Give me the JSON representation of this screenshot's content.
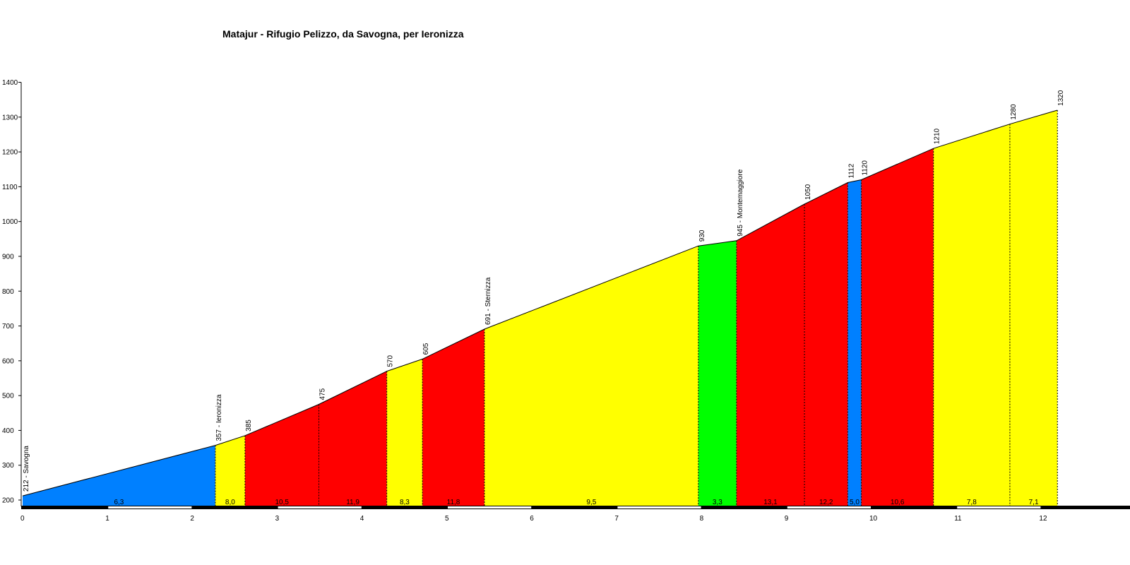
{
  "chart_data": {
    "type": "area",
    "title": "Matajur - Rifugio Pelizzo, da Savogna, per Ieronizza",
    "xlabel": "",
    "ylabel": "",
    "xlim": [
      0,
      12.8
    ],
    "ylim": [
      175,
      1400
    ],
    "x_ticks": [
      0,
      1,
      2,
      3,
      4,
      5,
      6,
      7,
      8,
      9,
      10,
      11,
      12
    ],
    "y_ticks": [
      200,
      300,
      400,
      500,
      600,
      700,
      800,
      900,
      1000,
      1100,
      1200,
      1300,
      1400
    ],
    "grid": false,
    "points": [
      {
        "x": 0,
        "y": 212,
        "label": "212 - Savogna"
      },
      {
        "x": 2.27,
        "y": 357,
        "label": "357 - Ieronizza"
      },
      {
        "x": 2.62,
        "y": 385,
        "label": "385"
      },
      {
        "x": 3.49,
        "y": 475,
        "label": "475"
      },
      {
        "x": 4.29,
        "y": 570,
        "label": "570"
      },
      {
        "x": 4.71,
        "y": 605,
        "label": "605"
      },
      {
        "x": 5.44,
        "y": 691,
        "label": "691 - Sternizza"
      },
      {
        "x": 7.96,
        "y": 930,
        "label": "930"
      },
      {
        "x": 8.41,
        "y": 945,
        "label": "945 - Montemaggiore"
      },
      {
        "x": 9.21,
        "y": 1050,
        "label": "1050"
      },
      {
        "x": 9.72,
        "y": 1112,
        "label": "1112"
      },
      {
        "x": 9.88,
        "y": 1120,
        "label": "1120"
      },
      {
        "x": 10.73,
        "y": 1210,
        "label": "1210"
      },
      {
        "x": 11.63,
        "y": 1280,
        "label": "1280"
      },
      {
        "x": 12.19,
        "y": 1320,
        "label": "1320"
      }
    ],
    "segments": [
      {
        "from": 0,
        "to": 1,
        "gradient": "6,3",
        "color": "#0080FF"
      },
      {
        "from": 1,
        "to": 2,
        "gradient": "8,0",
        "color": "#FFFF00"
      },
      {
        "from": 2,
        "to": 3,
        "gradient": "10,5",
        "color": "#FF0000"
      },
      {
        "from": 3,
        "to": 4,
        "gradient": "11,9",
        "color": "#FF0000"
      },
      {
        "from": 4,
        "to": 5,
        "gradient": "8,3",
        "color": "#FFFF00"
      },
      {
        "from": 5,
        "to": 6,
        "gradient": "11,8",
        "color": "#FF0000"
      },
      {
        "from": 6,
        "to": 7,
        "gradient": "9,5",
        "color": "#FFFF00"
      },
      {
        "from": 7,
        "to": 8,
        "gradient": "3,3",
        "color": "#00FF00"
      },
      {
        "from": 8,
        "to": 9,
        "gradient": "13,1",
        "color": "#FF0000"
      },
      {
        "from": 9,
        "to": 10,
        "gradient": "12,2",
        "color": "#FF0000"
      },
      {
        "from": 10,
        "to": 11,
        "gradient": "5,0",
        "color": "#0080FF"
      },
      {
        "from": 11,
        "to": 12,
        "gradient": "10,6",
        "color": "#FF0000"
      },
      {
        "from": 12,
        "to": 13,
        "gradient": "7,8",
        "color": "#FFFF00"
      },
      {
        "from": 13,
        "to": 14,
        "gradient": "7,1",
        "color": "#FFFF00"
      }
    ]
  }
}
